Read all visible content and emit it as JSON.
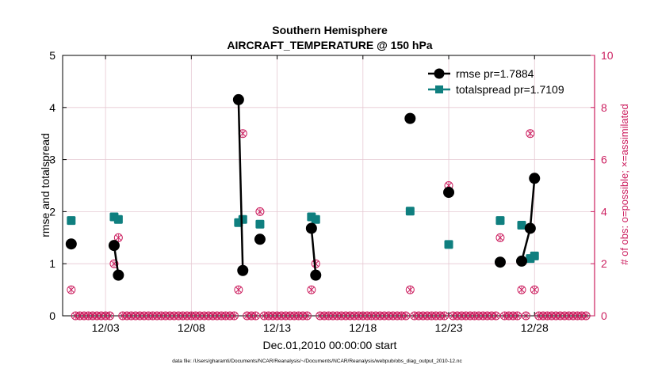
{
  "chart_data": {
    "type": "line",
    "title_line1": "Southern Hemisphere",
    "title_line2": "AIRCRAFT_TEMPERATURE @ 150 hPa",
    "xlabel": "Dec.01,2010 00:00:00 start",
    "ylabel_left": "rmse and totalspread",
    "ylabel_right": "# of obs: o=possible; ×=assimilated",
    "footnote": "data file: /Users/gharamti/Documents/NCAR/Reanalysis/~/Documents/NCAR/Reanalysis/webpub/obs_diag_output_2010-12.nc",
    "xlim": [
      0.5,
      31.5
    ],
    "ylim_left": [
      0,
      5
    ],
    "ylim_right": [
      0,
      10
    ],
    "x_ticks": [
      3,
      8,
      13,
      18,
      23,
      28
    ],
    "x_tick_labels": [
      "12/03",
      "12/08",
      "12/13",
      "12/18",
      "12/23",
      "12/28"
    ],
    "y_ticks_left": [
      0,
      1,
      2,
      3,
      4,
      5
    ],
    "y_ticks_right": [
      0,
      2,
      4,
      6,
      8,
      10
    ],
    "grid": true,
    "legend_position": "top-right",
    "colors": {
      "rmse": "#000000",
      "spread": "#0f7f7f",
      "obs": "#cc1e5f",
      "grid": "#e6c8d2"
    },
    "series": [
      {
        "name": "rmse",
        "legend": "rmse pr=1.7884",
        "points": [
          {
            "x": 1.0,
            "y": 1.38
          },
          {
            "x": 3.5,
            "y": 1.35
          },
          {
            "x": 3.75,
            "y": 0.78
          },
          {
            "x": 10.75,
            "y": 4.15
          },
          {
            "x": 11.0,
            "y": 0.87
          },
          {
            "x": 12.0,
            "y": 1.47
          },
          {
            "x": 15.0,
            "y": 1.68
          },
          {
            "x": 15.25,
            "y": 0.78
          },
          {
            "x": 20.75,
            "y": 3.79
          },
          {
            "x": 23.0,
            "y": 2.37
          },
          {
            "x": 26.0,
            "y": 1.03
          },
          {
            "x": 27.25,
            "y": 1.05
          },
          {
            "x": 27.75,
            "y": 1.68
          },
          {
            "x": 28.0,
            "y": 2.64
          }
        ],
        "segments": [
          [
            1,
            2
          ],
          [
            3,
            4
          ],
          [
            6,
            7
          ],
          [
            11,
            12
          ],
          [
            12,
            13
          ]
        ]
      },
      {
        "name": "totalspread",
        "legend": "totalspread pr=1.7109",
        "points": [
          {
            "x": 1.0,
            "y": 1.83
          },
          {
            "x": 3.5,
            "y": 1.9
          },
          {
            "x": 3.75,
            "y": 1.85
          },
          {
            "x": 10.75,
            "y": 1.79
          },
          {
            "x": 11.0,
            "y": 1.85
          },
          {
            "x": 12.0,
            "y": 1.76
          },
          {
            "x": 15.0,
            "y": 1.9
          },
          {
            "x": 15.25,
            "y": 1.85
          },
          {
            "x": 20.75,
            "y": 2.01
          },
          {
            "x": 23.0,
            "y": 1.37
          },
          {
            "x": 26.0,
            "y": 1.83
          },
          {
            "x": 27.25,
            "y": 1.74
          },
          {
            "x": 27.75,
            "y": 1.1
          },
          {
            "x": 28.0,
            "y": 1.15
          }
        ]
      }
    ],
    "obs_nonzero": [
      {
        "x": 1.0,
        "possible": 1,
        "assimilated": 1
      },
      {
        "x": 3.5,
        "possible": 2,
        "assimilated": 2
      },
      {
        "x": 3.75,
        "possible": 3,
        "assimilated": 3
      },
      {
        "x": 10.75,
        "possible": 1,
        "assimilated": 1
      },
      {
        "x": 11.0,
        "possible": 7,
        "assimilated": 7
      },
      {
        "x": 12.0,
        "possible": 4,
        "assimilated": 4
      },
      {
        "x": 15.0,
        "possible": 1,
        "assimilated": 1
      },
      {
        "x": 15.25,
        "possible": 2,
        "assimilated": 2
      },
      {
        "x": 20.75,
        "possible": 1,
        "assimilated": 1
      },
      {
        "x": 23.0,
        "possible": 5,
        "assimilated": 5
      },
      {
        "x": 26.0,
        "possible": 3,
        "assimilated": 3
      },
      {
        "x": 27.25,
        "possible": 1,
        "assimilated": 1
      },
      {
        "x": 27.75,
        "possible": 7,
        "assimilated": 7
      },
      {
        "x": 28.0,
        "possible": 1,
        "assimilated": 1
      }
    ],
    "obs_zero_every_days": 0.25
  }
}
